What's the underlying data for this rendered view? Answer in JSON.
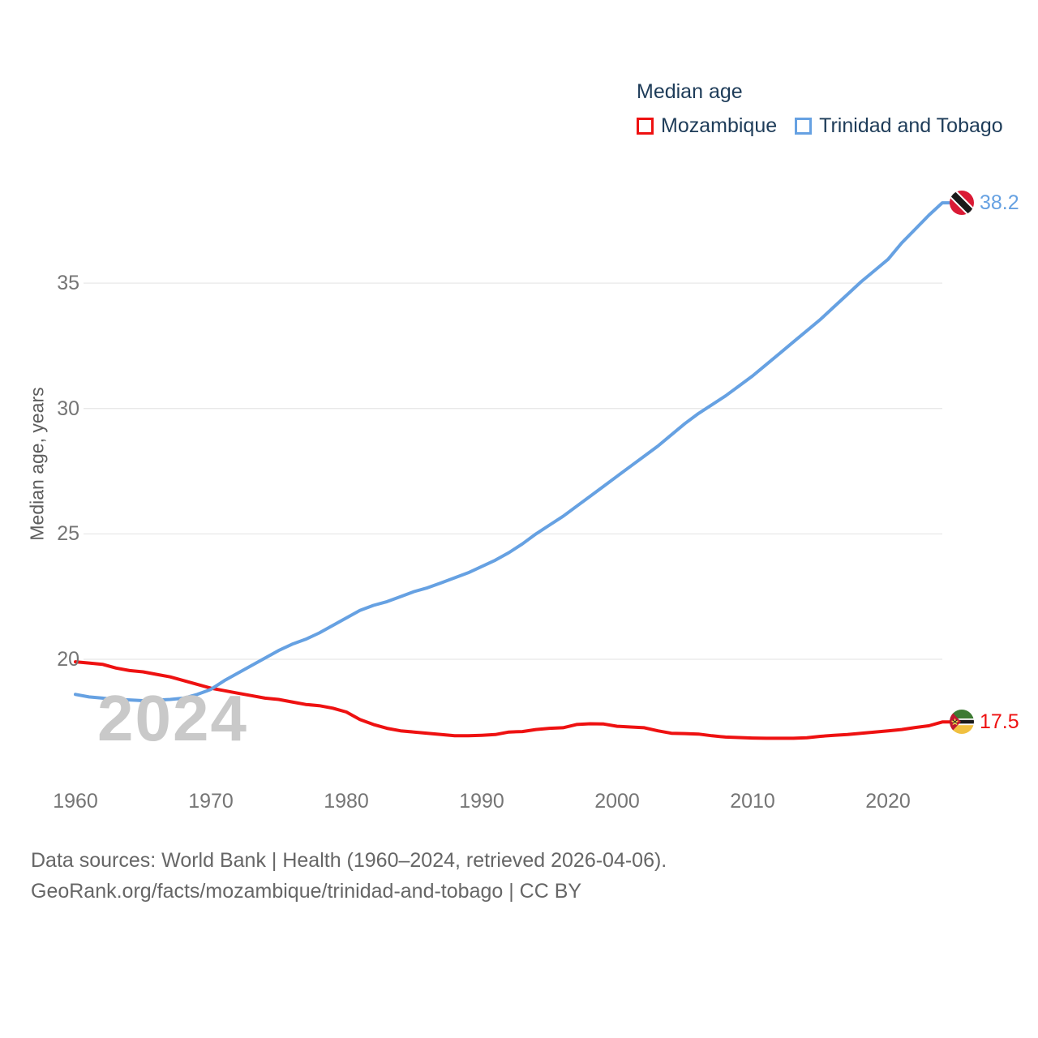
{
  "legend": {
    "title": "Median age",
    "items": [
      {
        "label": "Mozambique",
        "color": "#ee1111"
      },
      {
        "label": "Trinidad and Tobago",
        "color": "#66a1e2"
      }
    ]
  },
  "y_axis": {
    "title": "Median age, years",
    "ticks": [
      "35",
      "30",
      "25",
      "20"
    ]
  },
  "x_axis": {
    "ticks": [
      "1960",
      "1970",
      "1980",
      "1990",
      "2000",
      "2010",
      "2020"
    ]
  },
  "watermark": "2024",
  "end_labels": [
    {
      "text": "38.2",
      "color": "#66a1e2",
      "country": "Trinidad and Tobago"
    },
    {
      "text": "17.5",
      "color": "#ee1111",
      "country": "Mozambique"
    }
  ],
  "footer": {
    "line1": "Data sources: World Bank | Health (1960–2024, retrieved 2026-04-06).",
    "line2": "GeoRank.org/facts/mozambique/trinidad-and-tobago | CC BY"
  },
  "chart_data": {
    "type": "line",
    "title": "Median age",
    "ylabel": "Median age, years",
    "x_range": [
      1960,
      2024
    ],
    "ylim": [
      16,
      39.5
    ],
    "yticks": [
      20,
      25,
      30,
      35
    ],
    "xticks": [
      1960,
      1970,
      1980,
      1990,
      2000,
      2010,
      2020
    ],
    "grid": "horizontal",
    "legend_position": "top-right",
    "series": [
      {
        "name": "Mozambique",
        "color": "#ee1111",
        "end_value": 17.5,
        "values": [
          19.9,
          19.85,
          19.8,
          19.65,
          19.55,
          19.5,
          19.4,
          19.3,
          19.15,
          19.0,
          18.85,
          18.75,
          18.65,
          18.55,
          18.45,
          18.4,
          18.3,
          18.2,
          18.15,
          18.05,
          17.9,
          17.6,
          17.4,
          17.25,
          17.15,
          17.1,
          17.05,
          17.0,
          16.95,
          16.95,
          16.97,
          17.0,
          17.1,
          17.12,
          17.2,
          17.25,
          17.27,
          17.4,
          17.43,
          17.42,
          17.33,
          17.3,
          17.27,
          17.15,
          17.05,
          17.04,
          17.02,
          16.95,
          16.9,
          16.88,
          16.86,
          16.85,
          16.85,
          16.85,
          16.87,
          16.93,
          16.97,
          17.0,
          17.05,
          17.1,
          17.15,
          17.2,
          17.28,
          17.35,
          17.5
        ]
      },
      {
        "name": "Trinidad and Tobago",
        "color": "#66a1e2",
        "end_value": 38.2,
        "values": [
          18.6,
          18.5,
          18.45,
          18.4,
          18.38,
          18.35,
          18.37,
          18.4,
          18.45,
          18.6,
          18.8,
          19.15,
          19.45,
          19.75,
          20.05,
          20.35,
          20.6,
          20.8,
          21.05,
          21.35,
          21.65,
          21.95,
          22.15,
          22.3,
          22.5,
          22.7,
          22.85,
          23.05,
          23.25,
          23.45,
          23.7,
          23.95,
          24.25,
          24.6,
          25.0,
          25.35,
          25.7,
          26.1,
          26.5,
          26.9,
          27.3,
          27.7,
          28.1,
          28.5,
          28.95,
          29.4,
          29.8,
          30.15,
          30.5,
          30.9,
          31.3,
          31.75,
          32.2,
          32.65,
          33.1,
          33.55,
          34.05,
          34.55,
          35.05,
          35.5,
          35.95,
          36.6,
          37.15,
          37.7,
          38.2
        ]
      }
    ]
  }
}
